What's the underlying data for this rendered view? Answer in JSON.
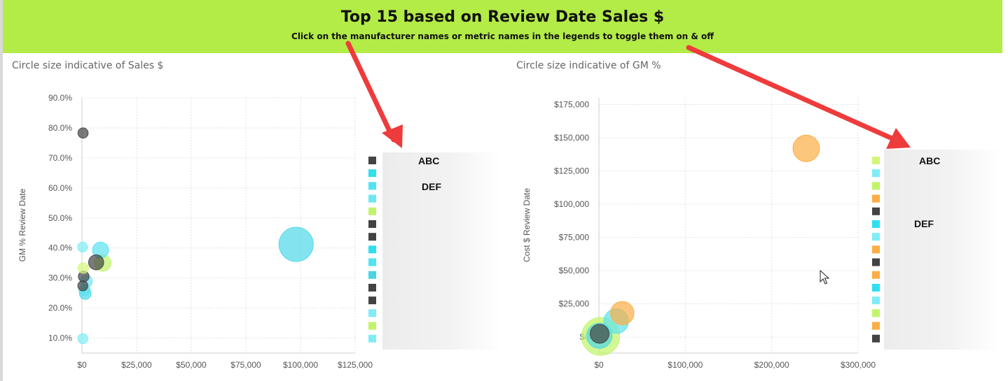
{
  "header": {
    "title": "Top 15 based on Review Date Sales $",
    "subtitle": "Click on the manufacturer names or metric names in the legends to toggle them on & off"
  },
  "chart_data": [
    {
      "type": "scatter",
      "caption": "Circle size indicative of Sales $",
      "ylabel": "GM % Review Date",
      "xlabel": "",
      "xlim": [
        0,
        125000
      ],
      "ylim": [
        5,
        90
      ],
      "x_ticks": [
        {
          "value": 0,
          "label": "$0"
        },
        {
          "value": 25000,
          "label": "$25,000"
        },
        {
          "value": 50000,
          "label": "$50,000"
        },
        {
          "value": 75000,
          "label": "$75,000"
        },
        {
          "value": 100000,
          "label": "$100,000"
        },
        {
          "value": 125000,
          "label": "$125,000"
        }
      ],
      "y_ticks": [
        {
          "value": 10,
          "label": "10.0%"
        },
        {
          "value": 20,
          "label": "20.0%"
        },
        {
          "value": 30,
          "label": "30.0%"
        },
        {
          "value": 40,
          "label": "40.0%"
        },
        {
          "value": 50,
          "label": "50.0%"
        },
        {
          "value": 60,
          "label": "60.0%"
        },
        {
          "value": 70,
          "label": "70.0%"
        },
        {
          "value": 80,
          "label": "80.0%"
        },
        {
          "value": 90,
          "label": "90.0%"
        }
      ],
      "grid": true,
      "points": [
        {
          "x": 500,
          "y": 78.3,
          "size": 500,
          "color": "#434343"
        },
        {
          "x": 98000,
          "y": 41.2,
          "size": 98000,
          "color": "#4fd8ea"
        },
        {
          "x": 8500,
          "y": 39.3,
          "size": 8500,
          "color": "#5be3f0"
        },
        {
          "x": 300,
          "y": 40.3,
          "size": 300,
          "color": "#7fecf6"
        },
        {
          "x": 6500,
          "y": 35.2,
          "size": 6500,
          "color": "#434343"
        },
        {
          "x": 9500,
          "y": 35.0,
          "size": 9500,
          "color": "#c2f46a"
        },
        {
          "x": 600,
          "y": 33.3,
          "size": 600,
          "color": "#d4f57c"
        },
        {
          "x": 800,
          "y": 30.5,
          "size": 800,
          "color": "#434343"
        },
        {
          "x": 2000,
          "y": 28.9,
          "size": 2000,
          "color": "#6fe6f4"
        },
        {
          "x": 400,
          "y": 27.4,
          "size": 400,
          "color": "#434343"
        },
        {
          "x": 1200,
          "y": 25.9,
          "size": 1200,
          "color": "#5be3f0"
        },
        {
          "x": 1500,
          "y": 24.8,
          "size": 1500,
          "color": "#4fd8ea"
        },
        {
          "x": 400,
          "y": 9.8,
          "size": 400,
          "color": "#7fecf6"
        }
      ],
      "legend": {
        "placement": "right",
        "names": [
          "ABC",
          "DEF"
        ],
        "swatches": [
          "#434343",
          "#2fe0f0",
          "#4fe4f2",
          "#6ce8f4",
          "#c2f46a",
          "#434343",
          "#434343",
          "#2fe0f0",
          "#4fe4f2",
          "#48d5e6",
          "#434343",
          "#434343",
          "#7fecf6",
          "#c2f46a",
          "#7fecf6"
        ]
      }
    },
    {
      "type": "scatter",
      "caption": "Circle size indicative of GM %",
      "ylabel": "Cost $ Review Date",
      "xlabel": "",
      "xlim": [
        0,
        300000
      ],
      "ylim": [
        -12000,
        180000
      ],
      "x_ticks": [
        {
          "value": 0,
          "label": "$0"
        },
        {
          "value": 100000,
          "label": "$100,000"
        },
        {
          "value": 200000,
          "label": "$200,000"
        },
        {
          "value": 300000,
          "label": "$300,000"
        }
      ],
      "y_ticks": [
        {
          "value": 0,
          "label": "$0"
        },
        {
          "value": 25000,
          "label": "$25,000"
        },
        {
          "value": 50000,
          "label": "$50,000"
        },
        {
          "value": 75000,
          "label": "$75,000"
        },
        {
          "value": 100000,
          "label": "$100,000"
        },
        {
          "value": 125000,
          "label": "$125,000"
        },
        {
          "value": 150000,
          "label": "$150,000"
        },
        {
          "value": 175000,
          "label": "$175,000"
        }
      ],
      "grid": true,
      "points": [
        {
          "x": 240000,
          "y": 142000,
          "size": 42,
          "color": "#fbae45"
        },
        {
          "x": 27000,
          "y": 18000,
          "size": 37,
          "color": "#fbae45"
        },
        {
          "x": 20000,
          "y": 12000,
          "size": 39,
          "color": "#5be3f0"
        },
        {
          "x": 2000,
          "y": 500,
          "size": 60,
          "color": "#c2f46a"
        },
        {
          "x": 1000,
          "y": 2000,
          "size": 45,
          "color": "#d4f57c"
        },
        {
          "x": 500,
          "y": 1000,
          "size": 40,
          "color": "#4fd8ea"
        },
        {
          "x": 800,
          "y": 2500,
          "size": 30,
          "color": "#434343"
        }
      ],
      "legend": {
        "placement": "right",
        "names": [
          "ABC",
          "DEF"
        ],
        "swatches": [
          "#d4f57c",
          "#7fecf6",
          "#c2f46a",
          "#fbae45",
          "#434343",
          "#2fe0f0",
          "#7fecf6",
          "#fbae45",
          "#434343",
          "#fbae45",
          "#2fe0f0",
          "#7fecf6",
          "#c2f46a",
          "#fbae45",
          "#434343"
        ]
      }
    }
  ]
}
